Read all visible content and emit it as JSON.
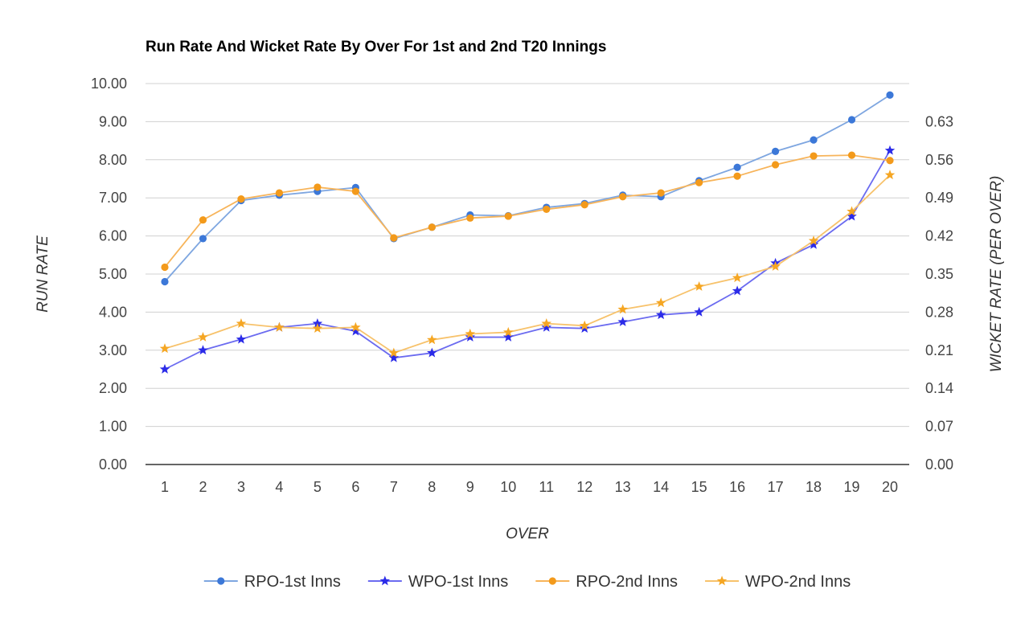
{
  "chart_data": {
    "type": "line",
    "title": "Run Rate And Wicket Rate By Over For 1st and 2nd T20 Innings",
    "xlabel": "OVER",
    "ylabel": "RUN RATE",
    "y2label": "WICKET RATE (PER OVER)",
    "x": [
      1,
      2,
      3,
      4,
      5,
      6,
      7,
      8,
      9,
      10,
      11,
      12,
      13,
      14,
      15,
      16,
      17,
      18,
      19,
      20
    ],
    "x_tick_labels": [
      "1",
      "2",
      "3",
      "4",
      "5",
      "6",
      "7",
      "8",
      "9",
      "10",
      "11",
      "12",
      "13",
      "14",
      "15",
      "16",
      "17",
      "18",
      "19",
      "20"
    ],
    "ylim": [
      0,
      10
    ],
    "y_ticks": [
      0,
      1,
      2,
      3,
      4,
      5,
      6,
      7,
      8,
      9,
      10
    ],
    "y_tick_labels": [
      "0.00",
      "1.00",
      "2.00",
      "3.00",
      "4.00",
      "5.00",
      "6.00",
      "7.00",
      "8.00",
      "9.00",
      "10.00"
    ],
    "y2lim": [
      0,
      0.7
    ],
    "y2_ticks": [
      0,
      0.07,
      0.14,
      0.21,
      0.28,
      0.35,
      0.42,
      0.49,
      0.56,
      0.63
    ],
    "y2_tick_labels": [
      "0.00",
      "0.07",
      "0.14",
      "0.21",
      "0.28",
      "0.35",
      "0.42",
      "0.49",
      "0.56",
      "0.63"
    ],
    "grid": true,
    "legend_position": "bottom",
    "series": [
      {
        "name": "RPO-1st Inns",
        "axis": "left",
        "marker": "circle",
        "color": "#3c78d8",
        "line_color": "#7ea6e0",
        "values": [
          4.8,
          5.93,
          6.93,
          7.07,
          7.17,
          7.27,
          5.93,
          6.23,
          6.55,
          6.53,
          6.75,
          6.85,
          7.07,
          7.03,
          7.45,
          7.8,
          8.22,
          8.52,
          9.05,
          9.7
        ]
      },
      {
        "name": "WPO-1st Inns",
        "axis": "right",
        "marker": "star",
        "color": "#2b2be8",
        "line_color": "#6b6bf0",
        "values": [
          0.175,
          0.21,
          0.23,
          0.252,
          0.259,
          0.245,
          0.196,
          0.205,
          0.234,
          0.234,
          0.252,
          0.25,
          0.262,
          0.275,
          0.28,
          0.319,
          0.37,
          0.404,
          0.456,
          0.577
        ]
      },
      {
        "name": "RPO-2nd Inns",
        "axis": "left",
        "marker": "circle",
        "color": "#f39a1b",
        "line_color": "#f7b45a",
        "values": [
          5.18,
          6.42,
          6.97,
          7.13,
          7.28,
          7.17,
          5.95,
          6.23,
          6.47,
          6.52,
          6.7,
          6.82,
          7.03,
          7.13,
          7.4,
          7.57,
          7.87,
          8.1,
          8.12,
          7.98
        ]
      },
      {
        "name": "WPO-2nd Inns",
        "axis": "right",
        "marker": "star",
        "color": "#f5a623",
        "line_color": "#f7c26b",
        "values": [
          0.213,
          0.234,
          0.259,
          0.252,
          0.25,
          0.252,
          0.205,
          0.229,
          0.24,
          0.243,
          0.259,
          0.255,
          0.285,
          0.297,
          0.327,
          0.343,
          0.364,
          0.411,
          0.465,
          0.532
        ]
      }
    ]
  }
}
